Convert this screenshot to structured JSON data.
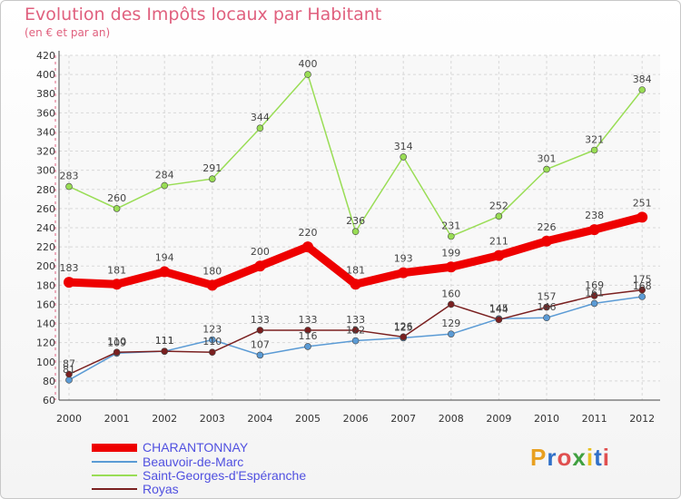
{
  "title": "Evolution des Impôts locaux par Habitant",
  "subtitle": "(en € et par an)",
  "logo": {
    "text": "Proxiti",
    "colors": [
      "#e8a020",
      "#3070c8",
      "#e05050",
      "#40a040",
      "#e8c020",
      "#3070c8",
      "#e05050"
    ]
  },
  "chart_data": {
    "type": "line",
    "x": [
      "2000",
      "2001",
      "2002",
      "2003",
      "2004",
      "2005",
      "2006",
      "2007",
      "2008",
      "2009",
      "2010",
      "2011",
      "2012"
    ],
    "ylim": [
      60,
      420
    ],
    "yticks": [
      60,
      80,
      100,
      120,
      140,
      160,
      180,
      200,
      220,
      240,
      260,
      280,
      300,
      320,
      340,
      360,
      380,
      400,
      420
    ],
    "grid": true,
    "legend_placement": "bottom-left",
    "series": [
      {
        "name": "Saint-Georges-d'Espéranche",
        "color": "#99dd55",
        "values": [
          283,
          260,
          284,
          291,
          344,
          400,
          236,
          314,
          231,
          252,
          301,
          321,
          384
        ]
      },
      {
        "name": "Beauvoir-de-Marc",
        "color": "#5b9bd5",
        "values": [
          81,
          109,
          111,
          123,
          107,
          116,
          122,
          125,
          129,
          145,
          146,
          161,
          168
        ]
      },
      {
        "name": "Royas",
        "color": "#7a2020",
        "values": [
          87,
          110,
          111,
          110,
          133,
          133,
          133,
          126,
          160,
          144,
          157,
          169,
          175
        ]
      },
      {
        "name": "CHARANTONNAY",
        "color": "#ee0000",
        "values": [
          183,
          181,
          194,
          180,
          200,
          220,
          181,
          193,
          199,
          211,
          226,
          238,
          251
        ]
      }
    ],
    "legend": [
      {
        "name": "CHARANTONNAY",
        "color": "#ee0000"
      },
      {
        "name": "Beauvoir-de-Marc",
        "color": "#5b9bd5"
      },
      {
        "name": "Saint-Georges-d'Espéranche",
        "color": "#99dd55"
      },
      {
        "name": "Royas",
        "color": "#7a2020"
      }
    ]
  }
}
